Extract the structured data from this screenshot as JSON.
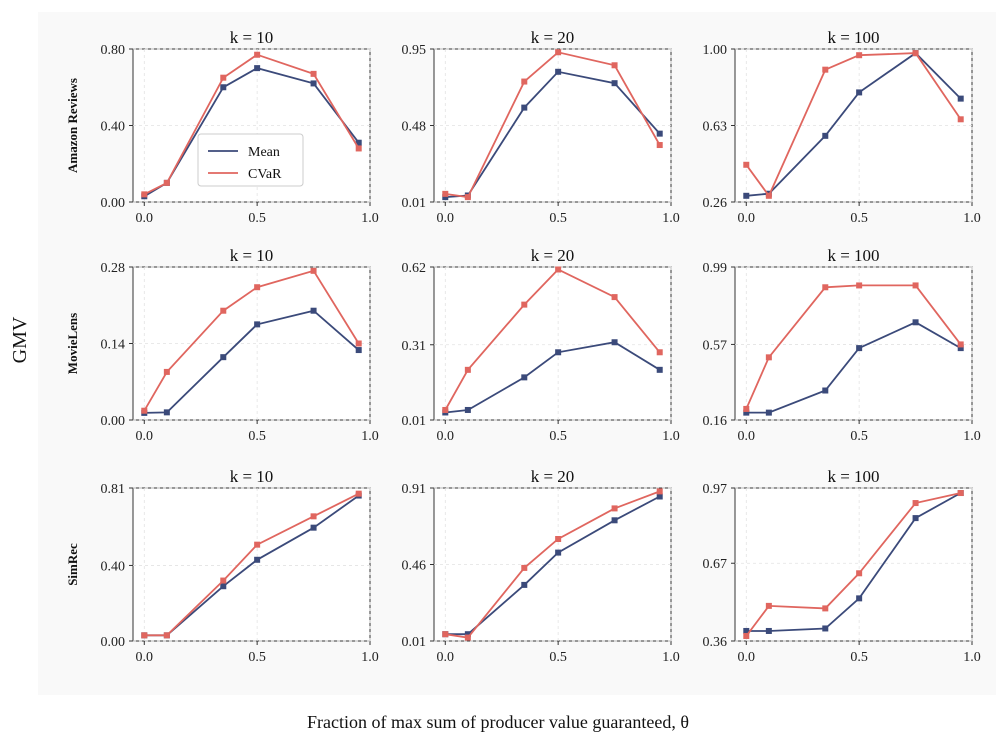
{
  "figure": {
    "ylabel": "GMV",
    "xlabel": "Fraction of max sum of producer value guaranteed, θ",
    "legend": {
      "position": "center-left",
      "panel": 0,
      "entries": [
        "Mean",
        "CVaR"
      ]
    },
    "colors": {
      "Mean": "#3b4a7a",
      "CVaR": "#e0665f"
    }
  },
  "chart_data": [
    {
      "type": "line",
      "row": "Amazon Reviews",
      "title": "k = 10",
      "x": [
        0.0,
        0.1,
        0.35,
        0.5,
        0.75,
        0.95
      ],
      "series": [
        {
          "name": "Mean",
          "values": [
            0.03,
            0.1,
            0.6,
            0.7,
            0.62,
            0.31
          ]
        },
        {
          "name": "CVaR",
          "values": [
            0.04,
            0.1,
            0.65,
            0.77,
            0.67,
            0.28
          ]
        }
      ],
      "xlim": [
        -0.05,
        1.0
      ],
      "ylim": [
        0.0,
        0.8
      ],
      "xticks": [
        "0.0",
        "0.5",
        "1.0"
      ],
      "yticks": [
        "0.00",
        "0.40",
        "0.80"
      ]
    },
    {
      "type": "line",
      "row": "Amazon Reviews",
      "title": "k = 20",
      "x": [
        0.0,
        0.1,
        0.35,
        0.5,
        0.75,
        0.95
      ],
      "series": [
        {
          "name": "Mean",
          "values": [
            0.04,
            0.05,
            0.59,
            0.81,
            0.74,
            0.43
          ]
        },
        {
          "name": "CVaR",
          "values": [
            0.06,
            0.04,
            0.75,
            0.93,
            0.85,
            0.36
          ]
        }
      ],
      "xlim": [
        -0.05,
        1.0
      ],
      "ylim": [
        0.01,
        0.95
      ],
      "xticks": [
        "0.0",
        "0.5",
        "1.0"
      ],
      "yticks": [
        "0.01",
        "0.48",
        "0.95"
      ]
    },
    {
      "type": "line",
      "row": "Amazon Reviews",
      "title": "k = 100",
      "x": [
        0.0,
        0.1,
        0.35,
        0.5,
        0.75,
        0.95
      ],
      "series": [
        {
          "name": "Mean",
          "values": [
            0.29,
            0.3,
            0.58,
            0.79,
            0.98,
            0.76
          ]
        },
        {
          "name": "CVaR",
          "values": [
            0.44,
            0.29,
            0.9,
            0.97,
            0.98,
            0.66
          ]
        }
      ],
      "xlim": [
        -0.05,
        1.0
      ],
      "ylim": [
        0.26,
        1.0
      ],
      "xticks": [
        "0.0",
        "0.5",
        "1.0"
      ],
      "yticks": [
        "0.26",
        "0.63",
        "1.00"
      ]
    },
    {
      "type": "line",
      "row": "MovieLens",
      "title": "k = 10",
      "x": [
        0.0,
        0.1,
        0.35,
        0.5,
        0.75,
        0.95
      ],
      "series": [
        {
          "name": "Mean",
          "values": [
            0.013,
            0.014,
            0.115,
            0.175,
            0.2,
            0.128
          ]
        },
        {
          "name": "CVaR",
          "values": [
            0.017,
            0.088,
            0.2,
            0.243,
            0.273,
            0.14
          ]
        }
      ],
      "xlim": [
        -0.05,
        1.0
      ],
      "ylim": [
        0.0,
        0.28
      ],
      "xticks": [
        "0.0",
        "0.5",
        "1.0"
      ],
      "yticks": [
        "0.00",
        "0.14",
        "0.28"
      ]
    },
    {
      "type": "line",
      "row": "MovieLens",
      "title": "k = 20",
      "x": [
        0.0,
        0.1,
        0.35,
        0.5,
        0.75,
        0.95
      ],
      "series": [
        {
          "name": "Mean",
          "values": [
            0.04,
            0.05,
            0.18,
            0.28,
            0.32,
            0.21
          ]
        },
        {
          "name": "CVaR",
          "values": [
            0.05,
            0.21,
            0.47,
            0.61,
            0.5,
            0.28
          ]
        }
      ],
      "xlim": [
        -0.05,
        1.0
      ],
      "ylim": [
        0.01,
        0.62
      ],
      "xticks": [
        "0.0",
        "0.5",
        "1.0"
      ],
      "yticks": [
        "0.01",
        "0.31",
        "0.62"
      ]
    },
    {
      "type": "line",
      "row": "MovieLens",
      "title": "k = 100",
      "x": [
        0.0,
        0.1,
        0.35,
        0.5,
        0.75,
        0.95
      ],
      "series": [
        {
          "name": "Mean",
          "values": [
            0.2,
            0.2,
            0.32,
            0.55,
            0.69,
            0.55
          ]
        },
        {
          "name": "CVaR",
          "values": [
            0.22,
            0.5,
            0.88,
            0.89,
            0.89,
            0.57
          ]
        }
      ],
      "xlim": [
        -0.05,
        1.0
      ],
      "ylim": [
        0.16,
        0.99
      ],
      "xticks": [
        "0.0",
        "0.5",
        "1.0"
      ],
      "yticks": [
        "0.16",
        "0.57",
        "0.99"
      ]
    },
    {
      "type": "line",
      "row": "SimRec",
      "title": "k = 10",
      "x": [
        0.0,
        0.1,
        0.35,
        0.5,
        0.75,
        0.95
      ],
      "series": [
        {
          "name": "Mean",
          "values": [
            0.03,
            0.03,
            0.29,
            0.43,
            0.6,
            0.77
          ]
        },
        {
          "name": "CVaR",
          "values": [
            0.03,
            0.03,
            0.32,
            0.51,
            0.66,
            0.78
          ]
        }
      ],
      "xlim": [
        -0.05,
        1.0
      ],
      "ylim": [
        0.0,
        0.81
      ],
      "xticks": [
        "0.0",
        "0.5",
        "1.0"
      ],
      "yticks": [
        "0.00",
        "0.40",
        "0.81"
      ]
    },
    {
      "type": "line",
      "row": "SimRec",
      "title": "k = 20",
      "x": [
        0.0,
        0.1,
        0.35,
        0.5,
        0.75,
        0.95
      ],
      "series": [
        {
          "name": "Mean",
          "values": [
            0.05,
            0.05,
            0.34,
            0.53,
            0.72,
            0.86
          ]
        },
        {
          "name": "CVaR",
          "values": [
            0.05,
            0.03,
            0.44,
            0.61,
            0.79,
            0.89
          ]
        }
      ],
      "xlim": [
        -0.05,
        1.0
      ],
      "ylim": [
        0.01,
        0.91
      ],
      "xticks": [
        "0.0",
        "0.5",
        "1.0"
      ],
      "yticks": [
        "0.01",
        "0.46",
        "0.91"
      ]
    },
    {
      "type": "line",
      "row": "SimRec",
      "title": "k = 100",
      "x": [
        0.0,
        0.1,
        0.35,
        0.5,
        0.75,
        0.95
      ],
      "series": [
        {
          "name": "Mean",
          "values": [
            0.4,
            0.4,
            0.41,
            0.53,
            0.85,
            0.95
          ]
        },
        {
          "name": "CVaR",
          "values": [
            0.38,
            0.5,
            0.49,
            0.63,
            0.91,
            0.95
          ]
        }
      ],
      "xlim": [
        -0.05,
        1.0
      ],
      "ylim": [
        0.36,
        0.97
      ],
      "xticks": [
        "0.0",
        "0.5",
        "1.0"
      ],
      "yticks": [
        "0.36",
        "0.67",
        "0.97"
      ]
    }
  ]
}
